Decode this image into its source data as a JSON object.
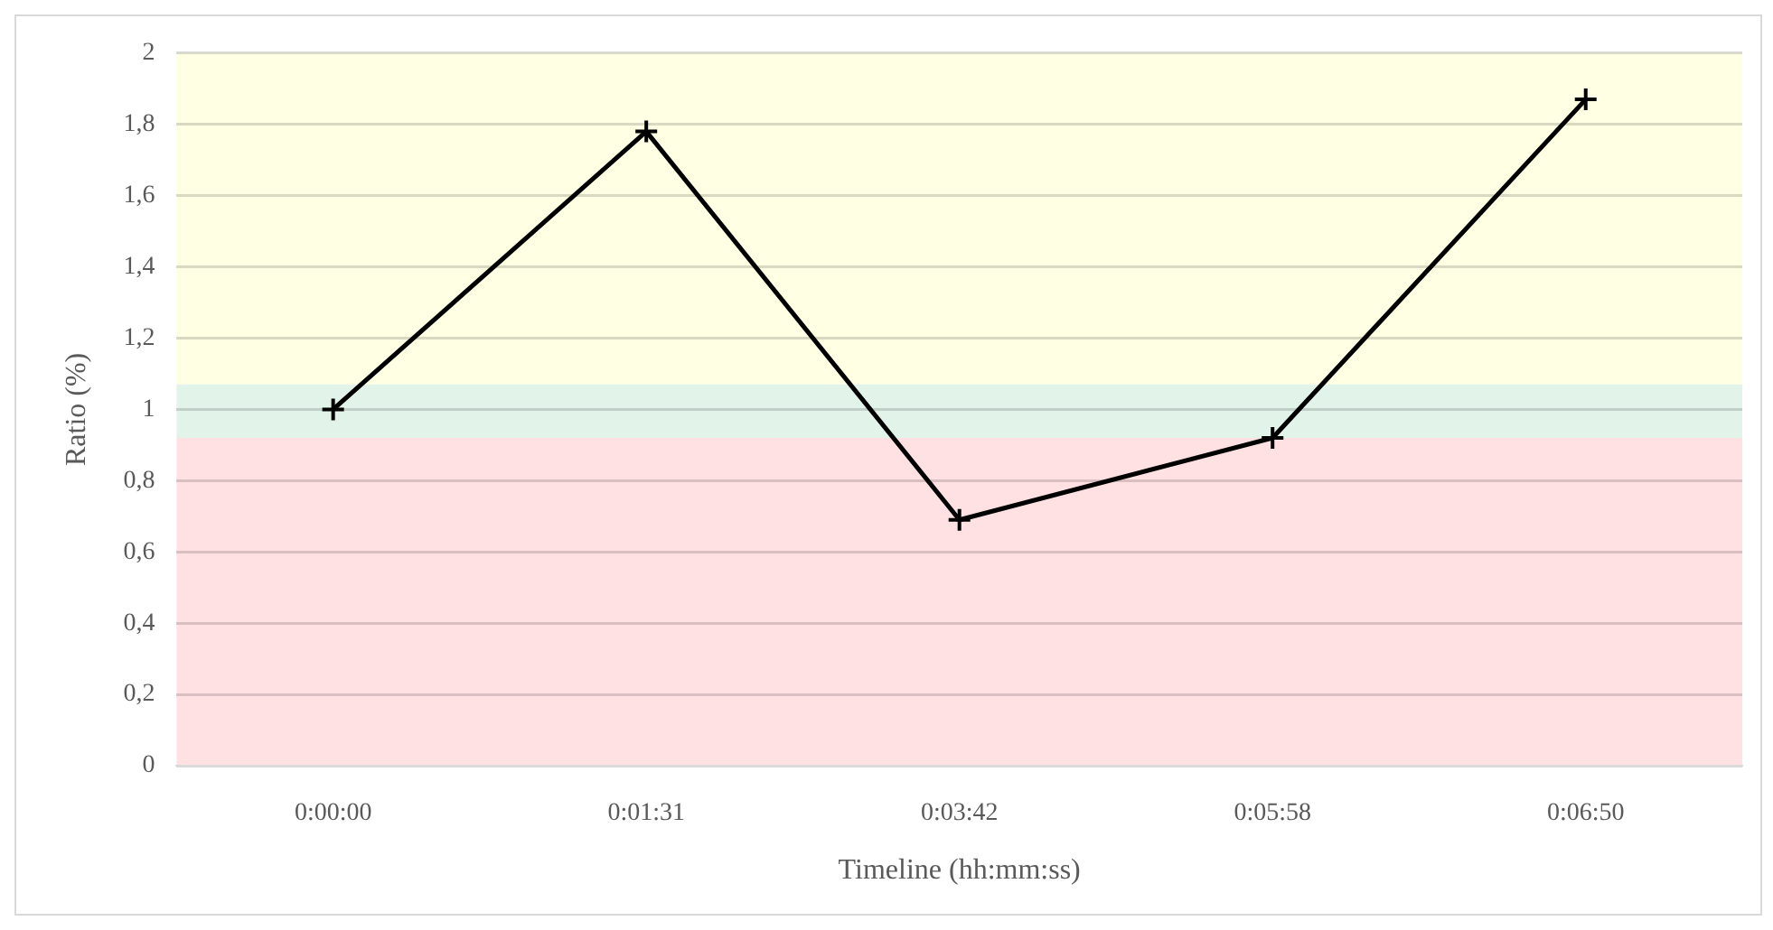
{
  "chart_data": {
    "type": "line",
    "xlabel": "Timeline (hh:mm:ss)",
    "ylabel": "Ratio (%)",
    "categories": [
      "0:00:00",
      "0:01:31",
      "0:03:42",
      "0:05:58",
      "0:06:50"
    ],
    "series": [
      {
        "color": "#000000",
        "values": [
          1.0,
          1.78,
          0.69,
          0.92,
          1.87
        ]
      }
    ],
    "ylim": [
      0,
      2
    ],
    "yticks": [
      0,
      {
        "value": 0.2,
        "label": "0,2"
      },
      {
        "value": 0.4,
        "label": "0,4"
      },
      {
        "value": 0.6,
        "label": "0,6"
      },
      {
        "value": 0.8,
        "label": "0,8"
      },
      1,
      {
        "value": 1.2,
        "label": "1,2"
      },
      {
        "value": 1.4,
        "label": "1,4"
      },
      {
        "value": 1.6,
        "label": "1,6"
      },
      {
        "value": 1.8,
        "label": "1,8"
      },
      2
    ],
    "bands": [
      {
        "axis": "y",
        "from": 1.07,
        "to": 2,
        "color": "#ffffe3"
      },
      {
        "axis": "y",
        "from": 0.92,
        "to": 1.07,
        "color": "#e2f4ea"
      },
      {
        "axis": "y",
        "from": 0,
        "to": 0.92,
        "color": "#ffe1e3"
      }
    ],
    "grid": "y",
    "legend": false,
    "marker": "cross",
    "line_style": "solid"
  }
}
